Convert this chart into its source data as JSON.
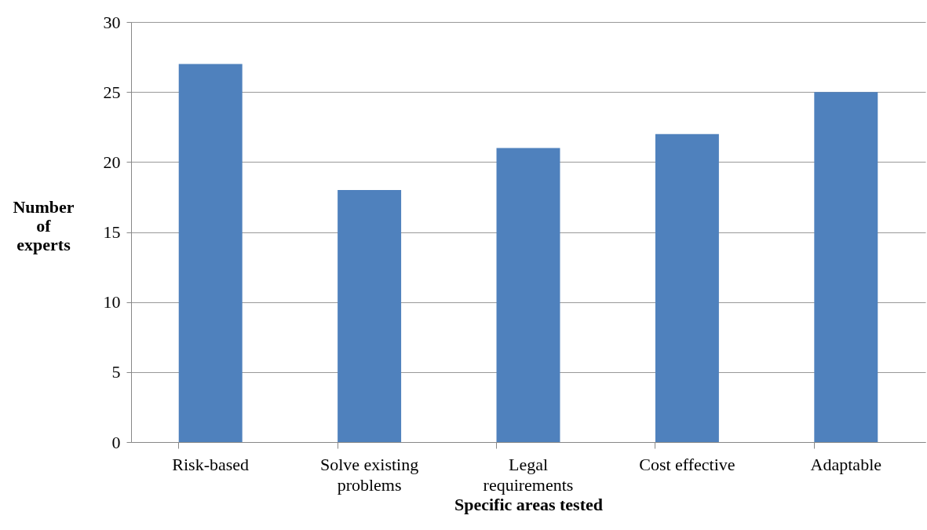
{
  "chart_data": {
    "type": "bar",
    "xlabel": "Specific areas tested",
    "ylabel": "Number of experts",
    "categories": [
      "Risk-based",
      "Solve existing problems",
      "Legal requirements",
      "Cost effective",
      "Adaptable"
    ],
    "values": [
      27,
      18,
      21,
      22,
      25
    ],
    "color": "#4f81bd",
    "ylim": [
      0,
      30
    ],
    "yticks": [
      0,
      5,
      10,
      15,
      20,
      25,
      30
    ],
    "grid": "y"
  }
}
